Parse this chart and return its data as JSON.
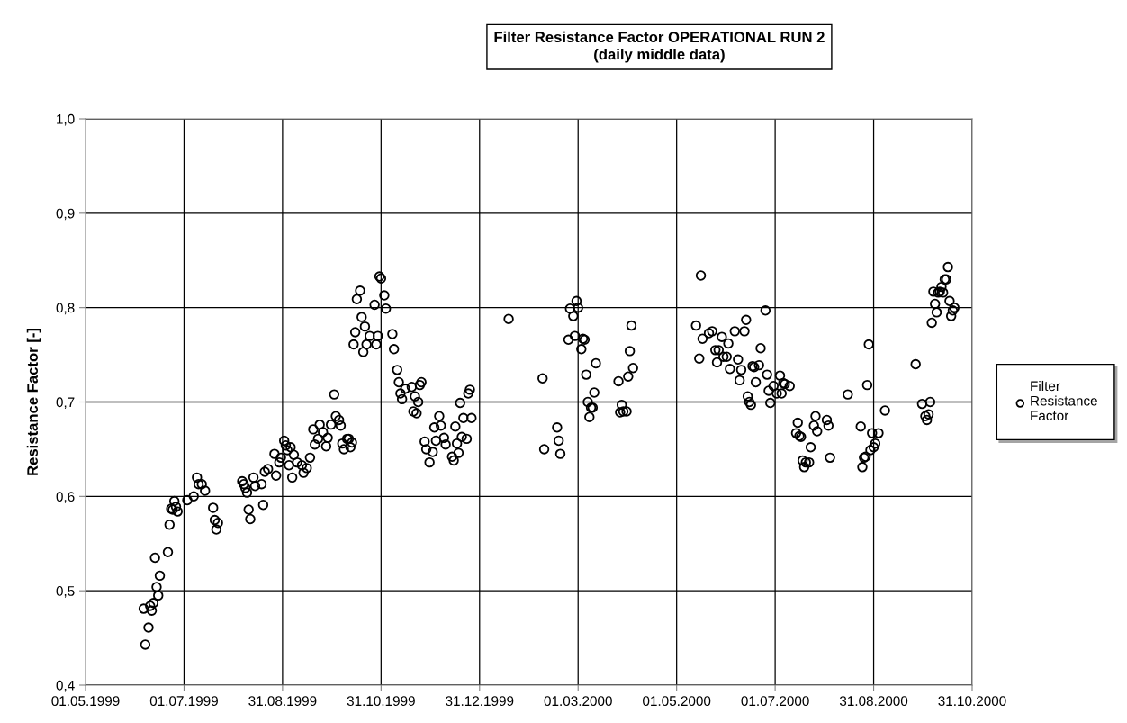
{
  "chart_data": {
    "type": "scatter",
    "title": "Filter Resistance Factor OPERATIONAL RUN 2\n(daily middle data)",
    "ylabel": "Resistance Factor [-]",
    "x": [
      "1999-06-07",
      "1999-06-06",
      "1999-06-09",
      "1999-06-10",
      "1999-06-11",
      "1999-06-12",
      "1999-06-13",
      "1999-06-14",
      "1999-06-15",
      "1999-06-16",
      "1999-06-21",
      "1999-06-22",
      "1999-06-23",
      "1999-06-24",
      "1999-06-25",
      "1999-06-27",
      "1999-06-26",
      "1999-07-03",
      "1999-07-07",
      "1999-07-09",
      "1999-07-10",
      "1999-07-12",
      "1999-07-14",
      "1999-07-19",
      "1999-07-20",
      "1999-07-21",
      "1999-07-22",
      "1999-08-06",
      "1999-08-07",
      "1999-08-08",
      "1999-08-09",
      "1999-08-10",
      "1999-08-11",
      "1999-08-13",
      "1999-08-14",
      "1999-08-18",
      "1999-08-19",
      "1999-08-20",
      "1999-08-22",
      "1999-08-26",
      "1999-08-27",
      "1999-08-29",
      "1999-08-30",
      "1999-09-01",
      "1999-09-02",
      "1999-09-03",
      "1999-09-05",
      "1999-09-04",
      "1999-09-06",
      "1999-09-07",
      "1999-09-09",
      "1999-09-12",
      "1999-09-13",
      "1999-09-15",
      "1999-09-17",
      "1999-09-19",
      "1999-09-20",
      "1999-09-22",
      "1999-09-23",
      "1999-09-25",
      "1999-09-27",
      "1999-09-28",
      "1999-09-30",
      "1999-10-02",
      "1999-10-03",
      "1999-10-05",
      "1999-10-06",
      "1999-10-07",
      "1999-10-08",
      "1999-10-10",
      "1999-10-11",
      "1999-10-12",
      "1999-10-13",
      "1999-10-14",
      "1999-10-15",
      "1999-10-16",
      "1999-10-18",
      "1999-10-19",
      "1999-10-20",
      "1999-10-21",
      "1999-10-22",
      "1999-10-24",
      "1999-10-27",
      "1999-10-28",
      "1999-10-29",
      "1999-10-30",
      "1999-10-31",
      "1999-11-02",
      "1999-11-03",
      "1999-11-07",
      "1999-11-08",
      "1999-11-10",
      "1999-11-11",
      "1999-11-12",
      "1999-11-13",
      "1999-11-15",
      "1999-11-19",
      "1999-11-20",
      "1999-11-21",
      "1999-11-22",
      "1999-11-23",
      "1999-11-24",
      "1999-11-25",
      "1999-11-27",
      "1999-11-28",
      "1999-11-30",
      "1999-12-02",
      "1999-12-03",
      "1999-12-04",
      "1999-12-06",
      "1999-12-07",
      "1999-12-09",
      "1999-12-10",
      "1999-12-14",
      "1999-12-15",
      "1999-12-16",
      "1999-12-17",
      "1999-12-18",
      "1999-12-19",
      "1999-12-20",
      "1999-12-21",
      "1999-12-23",
      "1999-12-24",
      "1999-12-25",
      "1999-12-26",
      "2000-01-18",
      "2000-02-08",
      "2000-02-09",
      "2000-02-17",
      "2000-02-18",
      "2000-02-19",
      "2000-02-24",
      "2000-02-25",
      "2000-02-27",
      "2000-02-28",
      "2000-02-29",
      "2000-03-01",
      "2000-03-03",
      "2000-03-04",
      "2000-03-05",
      "2000-03-06",
      "2000-03-07",
      "2000-03-08",
      "2000-03-09",
      "2000-03-10",
      "2000-03-11",
      "2000-03-12",
      "2000-03-26",
      "2000-03-27",
      "2000-03-28",
      "2000-03-29",
      "2000-03-31",
      "2000-04-01",
      "2000-04-02",
      "2000-04-03",
      "2000-04-04",
      "2000-05-13",
      "2000-05-15",
      "2000-05-16",
      "2000-05-17",
      "2000-05-21",
      "2000-05-23",
      "2000-05-25",
      "2000-05-26",
      "2000-05-27",
      "2000-05-29",
      "2000-05-30",
      "2000-06-01",
      "2000-06-02",
      "2000-06-03",
      "2000-06-06",
      "2000-06-08",
      "2000-06-09",
      "2000-06-10",
      "2000-06-12",
      "2000-06-13",
      "2000-06-14",
      "2000-06-15",
      "2000-06-16",
      "2000-06-17",
      "2000-06-18",
      "2000-06-19",
      "2000-06-21",
      "2000-06-22",
      "2000-06-25",
      "2000-06-26",
      "2000-06-27",
      "2000-06-28",
      "2000-06-30",
      "2000-07-02",
      "2000-07-04",
      "2000-07-05",
      "2000-07-06",
      "2000-07-07",
      "2000-07-10",
      "2000-07-14",
      "2000-07-15",
      "2000-07-16",
      "2000-07-17",
      "2000-07-18",
      "2000-07-19",
      "2000-07-20",
      "2000-07-22",
      "2000-07-23",
      "2000-07-25",
      "2000-07-26",
      "2000-07-27",
      "2000-08-02",
      "2000-08-03",
      "2000-08-04",
      "2000-08-15",
      "2000-08-23",
      "2000-08-24",
      "2000-08-25",
      "2000-08-26",
      "2000-08-27",
      "2000-08-28",
      "2000-08-29",
      "2000-08-31",
      "2000-08-30",
      "2000-09-01",
      "2000-09-03",
      "2000-09-07",
      "2000-09-26",
      "2000-09-30",
      "2000-10-02",
      "2000-10-03",
      "2000-10-04",
      "2000-10-05",
      "2000-10-06",
      "2000-10-07",
      "2000-10-08",
      "2000-10-09",
      "2000-10-10",
      "2000-10-11",
      "2000-10-12",
      "2000-10-13",
      "2000-10-14",
      "2000-10-15",
      "2000-10-16",
      "2000-10-17",
      "2000-10-18",
      "2000-10-19",
      "2000-10-20"
    ],
    "series": [
      {
        "name": "Filter Resistance Factor",
        "color": "#000000",
        "values": [
          0.443,
          0.481,
          0.461,
          0.484,
          0.479,
          0.487,
          0.535,
          0.504,
          0.495,
          0.516,
          0.541,
          0.57,
          0.587,
          0.586,
          0.595,
          0.584,
          0.589,
          0.596,
          0.6,
          0.62,
          0.613,
          0.613,
          0.606,
          0.588,
          0.575,
          0.565,
          0.572,
          0.616,
          0.613,
          0.609,
          0.604,
          0.586,
          0.576,
          0.62,
          0.611,
          0.613,
          0.591,
          0.626,
          0.629,
          0.645,
          0.622,
          0.636,
          0.641,
          0.659,
          0.654,
          0.649,
          0.652,
          0.633,
          0.62,
          0.644,
          0.636,
          0.633,
          0.625,
          0.63,
          0.641,
          0.671,
          0.655,
          0.661,
          0.676,
          0.668,
          0.653,
          0.662,
          0.676,
          0.708,
          0.685,
          0.681,
          0.675,
          0.656,
          0.65,
          0.661,
          0.661,
          0.652,
          0.657,
          0.761,
          0.774,
          0.809,
          0.818,
          0.79,
          0.753,
          0.78,
          0.761,
          0.77,
          0.803,
          0.761,
          0.77,
          0.833,
          0.831,
          0.813,
          0.799,
          0.772,
          0.756,
          0.734,
          0.721,
          0.709,
          0.703,
          0.714,
          0.716,
          0.69,
          0.706,
          0.688,
          0.7,
          0.718,
          0.721,
          0.658,
          0.65,
          0.636,
          0.647,
          0.673,
          0.659,
          0.685,
          0.675,
          0.662,
          0.655,
          0.642,
          0.638,
          0.674,
          0.656,
          0.646,
          0.699,
          0.663,
          0.683,
          0.661,
          0.709,
          0.713,
          0.683,
          0.788,
          0.725,
          0.65,
          0.673,
          0.659,
          0.645,
          0.766,
          0.799,
          0.791,
          0.77,
          0.807,
          0.8,
          0.756,
          0.767,
          0.766,
          0.729,
          0.7,
          0.684,
          0.694,
          0.694,
          0.71,
          0.741,
          0.722,
          0.689,
          0.697,
          0.69,
          0.69,
          0.727,
          0.754,
          0.781,
          0.736,
          0.781,
          0.746,
          0.834,
          0.767,
          0.773,
          0.775,
          0.755,
          0.742,
          0.755,
          0.769,
          0.748,
          0.748,
          0.762,
          0.735,
          0.775,
          0.745,
          0.723,
          0.734,
          0.775,
          0.787,
          0.706,
          0.7,
          0.697,
          0.738,
          0.737,
          0.721,
          0.739,
          0.757,
          0.797,
          0.729,
          0.712,
          0.699,
          0.717,
          0.709,
          0.728,
          0.709,
          0.72,
          0.719,
          0.717,
          0.667,
          0.678,
          0.664,
          0.663,
          0.638,
          0.631,
          0.636,
          0.636,
          0.652,
          0.675,
          0.685,
          0.669,
          0.681,
          0.675,
          0.641,
          0.708,
          0.674,
          0.631,
          0.641,
          0.642,
          0.718,
          0.761,
          0.649,
          0.652,
          0.667,
          0.656,
          0.667,
          0.691,
          0.74,
          0.698,
          0.685,
          0.681,
          0.687,
          0.7,
          0.784,
          0.817,
          0.804,
          0.795,
          0.816,
          0.817,
          0.822,
          0.816,
          0.83,
          0.83,
          0.843,
          0.807,
          0.791,
          0.797,
          0.8
        ]
      }
    ],
    "xlim": [
      "1999-05-01",
      "2000-10-31"
    ],
    "xticks": [
      {
        "value": "1999-05-01",
        "label": "01.05.1999"
      },
      {
        "value": "1999-07-01",
        "label": "01.07.1999"
      },
      {
        "value": "1999-08-31",
        "label": "31.08.1999"
      },
      {
        "value": "1999-10-31",
        "label": "31.10.1999"
      },
      {
        "value": "1999-12-31",
        "label": "31.12.1999"
      },
      {
        "value": "2000-03-01",
        "label": "01.03.2000"
      },
      {
        "value": "2000-05-01",
        "label": "01.05.2000"
      },
      {
        "value": "2000-07-01",
        "label": "01.07.2000"
      },
      {
        "value": "2000-08-31",
        "label": "31.08.2000"
      },
      {
        "value": "2000-10-31",
        "label": "31.10.2000"
      }
    ],
    "ylim": [
      0.4,
      1.0
    ],
    "yticks": [
      {
        "value": 0.4,
        "label": "0,4"
      },
      {
        "value": 0.5,
        "label": "0,5"
      },
      {
        "value": 0.6,
        "label": "0,6"
      },
      {
        "value": 0.7,
        "label": "0,7"
      },
      {
        "value": 0.8,
        "label": "0,8"
      },
      {
        "value": 0.9,
        "label": "0,9"
      },
      {
        "value": 1.0,
        "label": "1,0"
      }
    ],
    "grid": true,
    "legend": "right",
    "marker": "circle"
  }
}
